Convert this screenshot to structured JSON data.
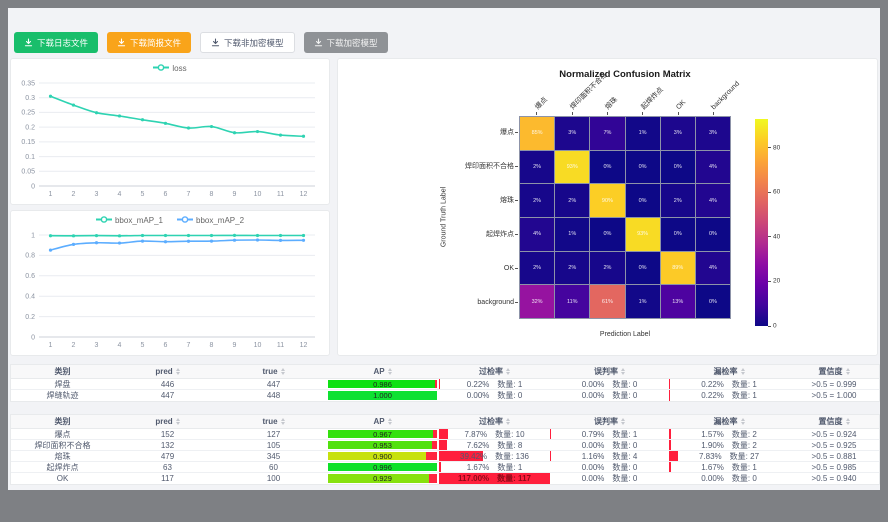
{
  "colors": {
    "accent_teal": "#2ed3b2",
    "accent_blue": "#5cadff",
    "success_green": "#19be6b",
    "warning_orange": "#f9a41a",
    "disabled_gray": "#8f9296",
    "danger_red": "#ff1f3d",
    "ap_track_red": "#ff2740"
  },
  "toolbar": {
    "buttons": [
      {
        "label": "下载日志文件",
        "icon": "download-icon",
        "variant": "success",
        "bg": "#19be6b",
        "fg": "#ffffff"
      },
      {
        "label": "下载简报文件",
        "icon": "download-icon",
        "variant": "warning",
        "bg": "#f9a41a",
        "fg": "#ffffff"
      },
      {
        "label": "下载非加密模型",
        "icon": "download-icon",
        "variant": "default",
        "bg": "#ffffff",
        "fg": "#515a6e",
        "border": "#dcdee2"
      },
      {
        "label": "下载加密模型",
        "icon": "download-icon",
        "variant": "disabled",
        "bg": "#8f9296",
        "fg": "#f2f2f2"
      }
    ]
  },
  "chart_data": [
    {
      "type": "line",
      "legend": [
        "loss"
      ],
      "x": [
        1,
        2,
        3,
        4,
        5,
        6,
        7,
        8,
        9,
        10,
        11,
        12
      ],
      "series": [
        {
          "name": "loss",
          "color": "#2ed3b2",
          "values": [
            0.305,
            0.275,
            0.249,
            0.238,
            0.225,
            0.213,
            0.197,
            0.202,
            0.181,
            0.185,
            0.173,
            0.169
          ]
        }
      ],
      "ylim": [
        0,
        0.35
      ],
      "yticks": [
        0,
        0.05,
        0.1,
        0.15,
        0.2,
        0.25,
        0.3,
        0.35
      ],
      "grid": true,
      "legend_position": "top"
    },
    {
      "type": "line",
      "legend": [
        "bbox_mAP_1",
        "bbox_mAP_2"
      ],
      "x": [
        1,
        2,
        3,
        4,
        5,
        6,
        7,
        8,
        9,
        10,
        11,
        12
      ],
      "series": [
        {
          "name": "bbox_mAP_1",
          "color": "#2ed3b2",
          "values": [
            0.993,
            0.992,
            0.994,
            0.992,
            0.995,
            0.995,
            0.995,
            0.995,
            0.996,
            0.995,
            0.995,
            0.995
          ]
        },
        {
          "name": "bbox_mAP_2",
          "color": "#5cadff",
          "values": [
            0.852,
            0.908,
            0.924,
            0.921,
            0.94,
            0.934,
            0.939,
            0.94,
            0.949,
            0.951,
            0.947,
            0.948
          ]
        }
      ],
      "ylim": [
        0,
        1
      ],
      "yticks": [
        0,
        0.2,
        0.4,
        0.6,
        0.8,
        1
      ],
      "grid": true,
      "legend_position": "top"
    },
    {
      "type": "heatmap",
      "title": "Normalized Confusion Matrix",
      "xlabel": "Prediction Label",
      "ylabel": "Ground Truth Label",
      "labels": [
        "爆点",
        "焊印面积不合格",
        "熔珠",
        "起焊炸点",
        "OK",
        "background"
      ],
      "colormap": "plasma",
      "vmax": 93,
      "colorbar_ticks": [
        0,
        20,
        40,
        60,
        80
      ],
      "values_pct": [
        [
          85,
          3,
          7,
          1,
          3,
          3
        ],
        [
          2,
          93,
          0,
          0,
          0,
          4
        ],
        [
          2,
          2,
          90,
          0,
          2,
          4
        ],
        [
          4,
          1,
          0,
          93,
          0,
          0
        ],
        [
          2,
          2,
          2,
          0,
          89,
          4
        ],
        [
          32,
          11,
          61,
          1,
          13,
          0
        ]
      ]
    }
  ],
  "tables": [
    {
      "headers": [
        {
          "label": "类别",
          "sortable": false
        },
        {
          "label": "pred",
          "sortable": true
        },
        {
          "label": "true",
          "sortable": true
        },
        {
          "label": "AP",
          "sortable": true
        },
        {
          "label": "过检率",
          "sortable": true
        },
        {
          "label": "误判率",
          "sortable": true
        },
        {
          "label": "漏检率",
          "sortable": true
        },
        {
          "label": "置信度",
          "sortable": true
        }
      ],
      "rows": [
        {
          "label": "焊盘",
          "pred": 446,
          "gt": 447,
          "ap": "0.986",
          "ap_value": 0.986,
          "overkill": {
            "pct": "0.22%",
            "value": 0.22,
            "count": "数量: 1"
          },
          "misjudge": {
            "pct": "0.00%",
            "value": 0,
            "count": "数量: 0"
          },
          "miss": {
            "pct": "0.22%",
            "value": 0.22,
            "count": "数量: 1"
          },
          "confidence": ">0.5 = 0.999"
        },
        {
          "label": "焊缝轨迹",
          "pred": 447,
          "gt": 448,
          "ap": "1.000",
          "ap_value": 1.0,
          "overkill": {
            "pct": "0.00%",
            "value": 0,
            "count": "数量: 0"
          },
          "misjudge": {
            "pct": "0.00%",
            "value": 0,
            "count": "数量: 0"
          },
          "miss": {
            "pct": "0.22%",
            "value": 0.22,
            "count": "数量: 1"
          },
          "confidence": ">0.5 = 1.000"
        }
      ]
    },
    {
      "headers": [
        {
          "label": "类别",
          "sortable": false
        },
        {
          "label": "pred",
          "sortable": true
        },
        {
          "label": "true",
          "sortable": true
        },
        {
          "label": "AP",
          "sortable": true
        },
        {
          "label": "过检率",
          "sortable": true
        },
        {
          "label": "误判率",
          "sortable": true
        },
        {
          "label": "漏检率",
          "sortable": true
        },
        {
          "label": "置信度",
          "sortable": true
        }
      ],
      "rows": [
        {
          "label": "爆点",
          "pred": 152,
          "gt": 127,
          "ap": "0.967",
          "ap_value": 0.967,
          "overkill": {
            "pct": "7.87%",
            "value": 7.87,
            "count": "数量: 10"
          },
          "misjudge": {
            "pct": "0.79%",
            "value": 0.79,
            "count": "数量: 1"
          },
          "miss": {
            "pct": "1.57%",
            "value": 1.57,
            "count": "数量: 2"
          },
          "confidence": ">0.5 = 0.924"
        },
        {
          "label": "焊印面积不合格",
          "pred": 132,
          "gt": 105,
          "ap": "0.953",
          "ap_value": 0.953,
          "overkill": {
            "pct": "7.62%",
            "value": 7.62,
            "count": "数量: 8"
          },
          "misjudge": {
            "pct": "0.00%",
            "value": 0,
            "count": "数量: 0"
          },
          "miss": {
            "pct": "1.90%",
            "value": 1.9,
            "count": "数量: 2"
          },
          "confidence": ">0.5 = 0.925"
        },
        {
          "label": "熔珠",
          "pred": 479,
          "gt": 345,
          "ap": "0.900",
          "ap_value": 0.9,
          "overkill": {
            "pct": "39.42%",
            "value": 39.42,
            "count": "数量: 136"
          },
          "misjudge": {
            "pct": "1.16%",
            "value": 1.16,
            "count": "数量: 4"
          },
          "miss": {
            "pct": "7.83%",
            "value": 7.83,
            "count": "数量: 27"
          },
          "confidence": ">0.5 = 0.881"
        },
        {
          "label": "起焊炸点",
          "pred": 63,
          "gt": 60,
          "ap": "0.996",
          "ap_value": 0.996,
          "overkill": {
            "pct": "1.67%",
            "value": 1.67,
            "count": "数量: 1"
          },
          "misjudge": {
            "pct": "0.00%",
            "value": 0,
            "count": "数量: 0"
          },
          "miss": {
            "pct": "1.67%",
            "value": 1.67,
            "count": "数量: 1"
          },
          "confidence": ">0.5 = 0.985"
        },
        {
          "label": "OK",
          "pred": 117,
          "gt": 100,
          "ap": "0.929",
          "ap_value": 0.929,
          "overkill": {
            "pct": "117.00%",
            "value": 117,
            "count": "数量: 117"
          },
          "misjudge": {
            "pct": "0.00%",
            "value": 0,
            "count": "数量: 0"
          },
          "miss": {
            "pct": "0.00%",
            "value": 0,
            "count": "数量: 0"
          },
          "confidence": ">0.5 = 0.940"
        }
      ]
    }
  ]
}
